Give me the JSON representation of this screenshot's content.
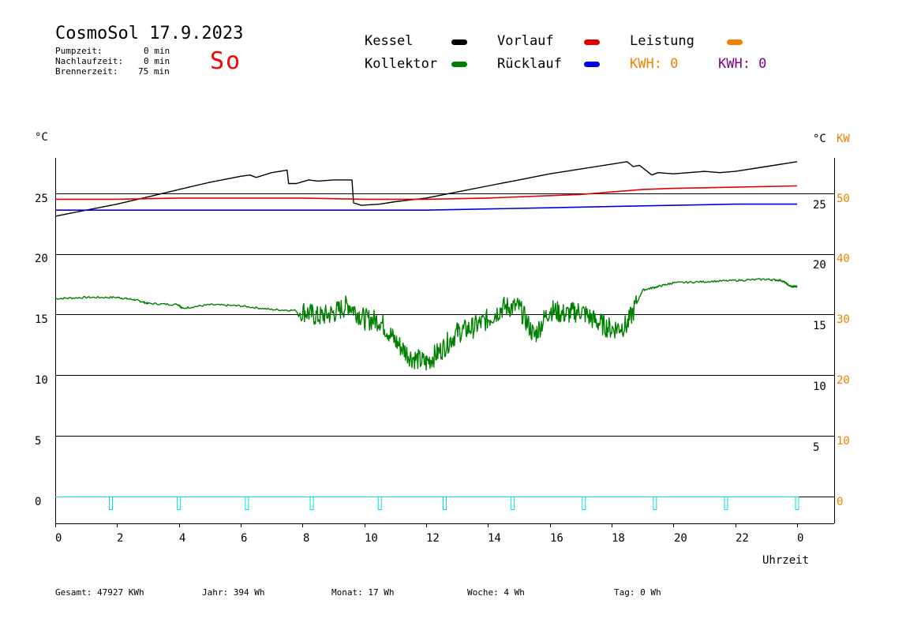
{
  "header": {
    "title": "CosmoSol 17.9.2023",
    "day": "So",
    "stats": [
      {
        "label": "Pumpzeit:",
        "value": "0 min"
      },
      {
        "label": "Nachlaufzeit:",
        "value": "0 min"
      },
      {
        "label": "Brennerzeit:",
        "value": "75 min"
      }
    ]
  },
  "legend": {
    "kessel": "Kessel",
    "kollektor": "Kollektor",
    "vorlauf": "Vorlauf",
    "ruecklauf": "Rücklauf",
    "leistung": "Leistung",
    "kwh1": "KWH: 0",
    "kwh2": "KWH: 0"
  },
  "colors": {
    "kessel": "#000000",
    "kollektor": "#008000",
    "vorlauf": "#e00000",
    "ruecklauf": "#0000e0",
    "leistung": "#f08000",
    "kwh2": "#800080",
    "pump": "#00e0e0"
  },
  "units": {
    "left": "°C",
    "right": "°C",
    "kw": "KW"
  },
  "xlabel": "Uhrzeit",
  "footer": {
    "gesamt": "Gesamt:  47927 KWh",
    "jahr": "Jahr:    394 Wh",
    "monat": "Monat:    17 Wh",
    "woche": "Woche:      4 Wh",
    "tag": "Tag:      0 Wh"
  },
  "chart_data": {
    "type": "line",
    "xlim": [
      0,
      24
    ],
    "ylim_left": [
      -2,
      29
    ],
    "left_ticks": [
      "0",
      "5",
      "10",
      "15",
      "20",
      "25"
    ],
    "right_ticks": [
      "5",
      "10",
      "15",
      "20",
      "25"
    ],
    "kw_ticks": [
      "0",
      "10",
      "20",
      "30",
      "40",
      "50"
    ],
    "x_ticks": [
      "0",
      "2",
      "4",
      "6",
      "8",
      "10",
      "12",
      "14",
      "16",
      "18",
      "20",
      "22",
      "0"
    ],
    "grid": "horizontal",
    "series": [
      {
        "name": "Kessel",
        "key": "kessel",
        "x": [
          0,
          1,
          2,
          3,
          4,
          5,
          6,
          6.3,
          6.5,
          7,
          7.5,
          7.55,
          7.8,
          8.2,
          8.5,
          9,
          9.6,
          9.65,
          9.9,
          10.5,
          11,
          12,
          13,
          14,
          15,
          16,
          17,
          18,
          18.5,
          18.7,
          18.9,
          19.3,
          19.5,
          20,
          21,
          21.5,
          22,
          23,
          24
        ],
        "y": [
          23.1,
          23.6,
          24.1,
          24.7,
          25.3,
          25.9,
          26.4,
          26.5,
          26.3,
          26.7,
          26.9,
          25.8,
          25.8,
          26.1,
          26.0,
          26.1,
          26.1,
          24.2,
          24.0,
          24.1,
          24.3,
          24.6,
          25.1,
          25.6,
          26.1,
          26.6,
          27.0,
          27.4,
          27.6,
          27.2,
          27.3,
          26.5,
          26.7,
          26.6,
          26.8,
          26.7,
          26.8,
          27.2,
          27.6
        ]
      },
      {
        "name": "Vorlauf",
        "key": "vorlauf",
        "x": [
          0,
          2,
          4,
          6,
          8,
          10,
          12,
          14,
          16,
          17,
          18,
          19,
          20,
          22,
          24
        ],
        "y": [
          24.5,
          24.5,
          24.6,
          24.6,
          24.6,
          24.5,
          24.5,
          24.6,
          24.8,
          24.9,
          25.1,
          25.3,
          25.4,
          25.5,
          25.6
        ]
      },
      {
        "name": "Rücklauf",
        "key": "ruecklauf",
        "x": [
          0,
          4,
          8,
          10,
          12,
          14,
          16,
          18,
          20,
          22,
          24
        ],
        "y": [
          23.6,
          23.6,
          23.6,
          23.6,
          23.6,
          23.7,
          23.8,
          23.9,
          24.0,
          24.1,
          24.1
        ]
      },
      {
        "name": "Kollektor",
        "key": "kollektor",
        "x": [
          0,
          1,
          2,
          2.6,
          3,
          4,
          4.1,
          5,
          6,
          7,
          8,
          8.5,
          9,
          9.5,
          10,
          10.5,
          11,
          11.5,
          12,
          12.5,
          13,
          13.5,
          14,
          14.5,
          15,
          15.5,
          16,
          16.5,
          17,
          17.5,
          18,
          18.5,
          19,
          19.5,
          20,
          21,
          22,
          23,
          23.5,
          23.8,
          24
        ],
        "y": [
          16.3,
          16.4,
          16.4,
          16.2,
          15.9,
          15.8,
          15.5,
          15.8,
          15.7,
          15.4,
          15.3,
          14.8,
          15.1,
          15.8,
          14.6,
          14.5,
          12.8,
          11.5,
          11.0,
          12.1,
          13.5,
          13.9,
          14.6,
          15.6,
          15.6,
          13.2,
          15.4,
          15.0,
          15.3,
          14.4,
          13.8,
          14.1,
          17.0,
          17.3,
          17.6,
          17.7,
          17.8,
          17.9,
          17.8,
          17.3,
          17.3
        ]
      }
    ],
    "pump_marks": [
      1.8,
      4.0,
      6.2,
      8.3,
      10.5,
      12.6,
      14.8,
      17.1,
      19.4,
      21.7,
      24.0
    ]
  }
}
